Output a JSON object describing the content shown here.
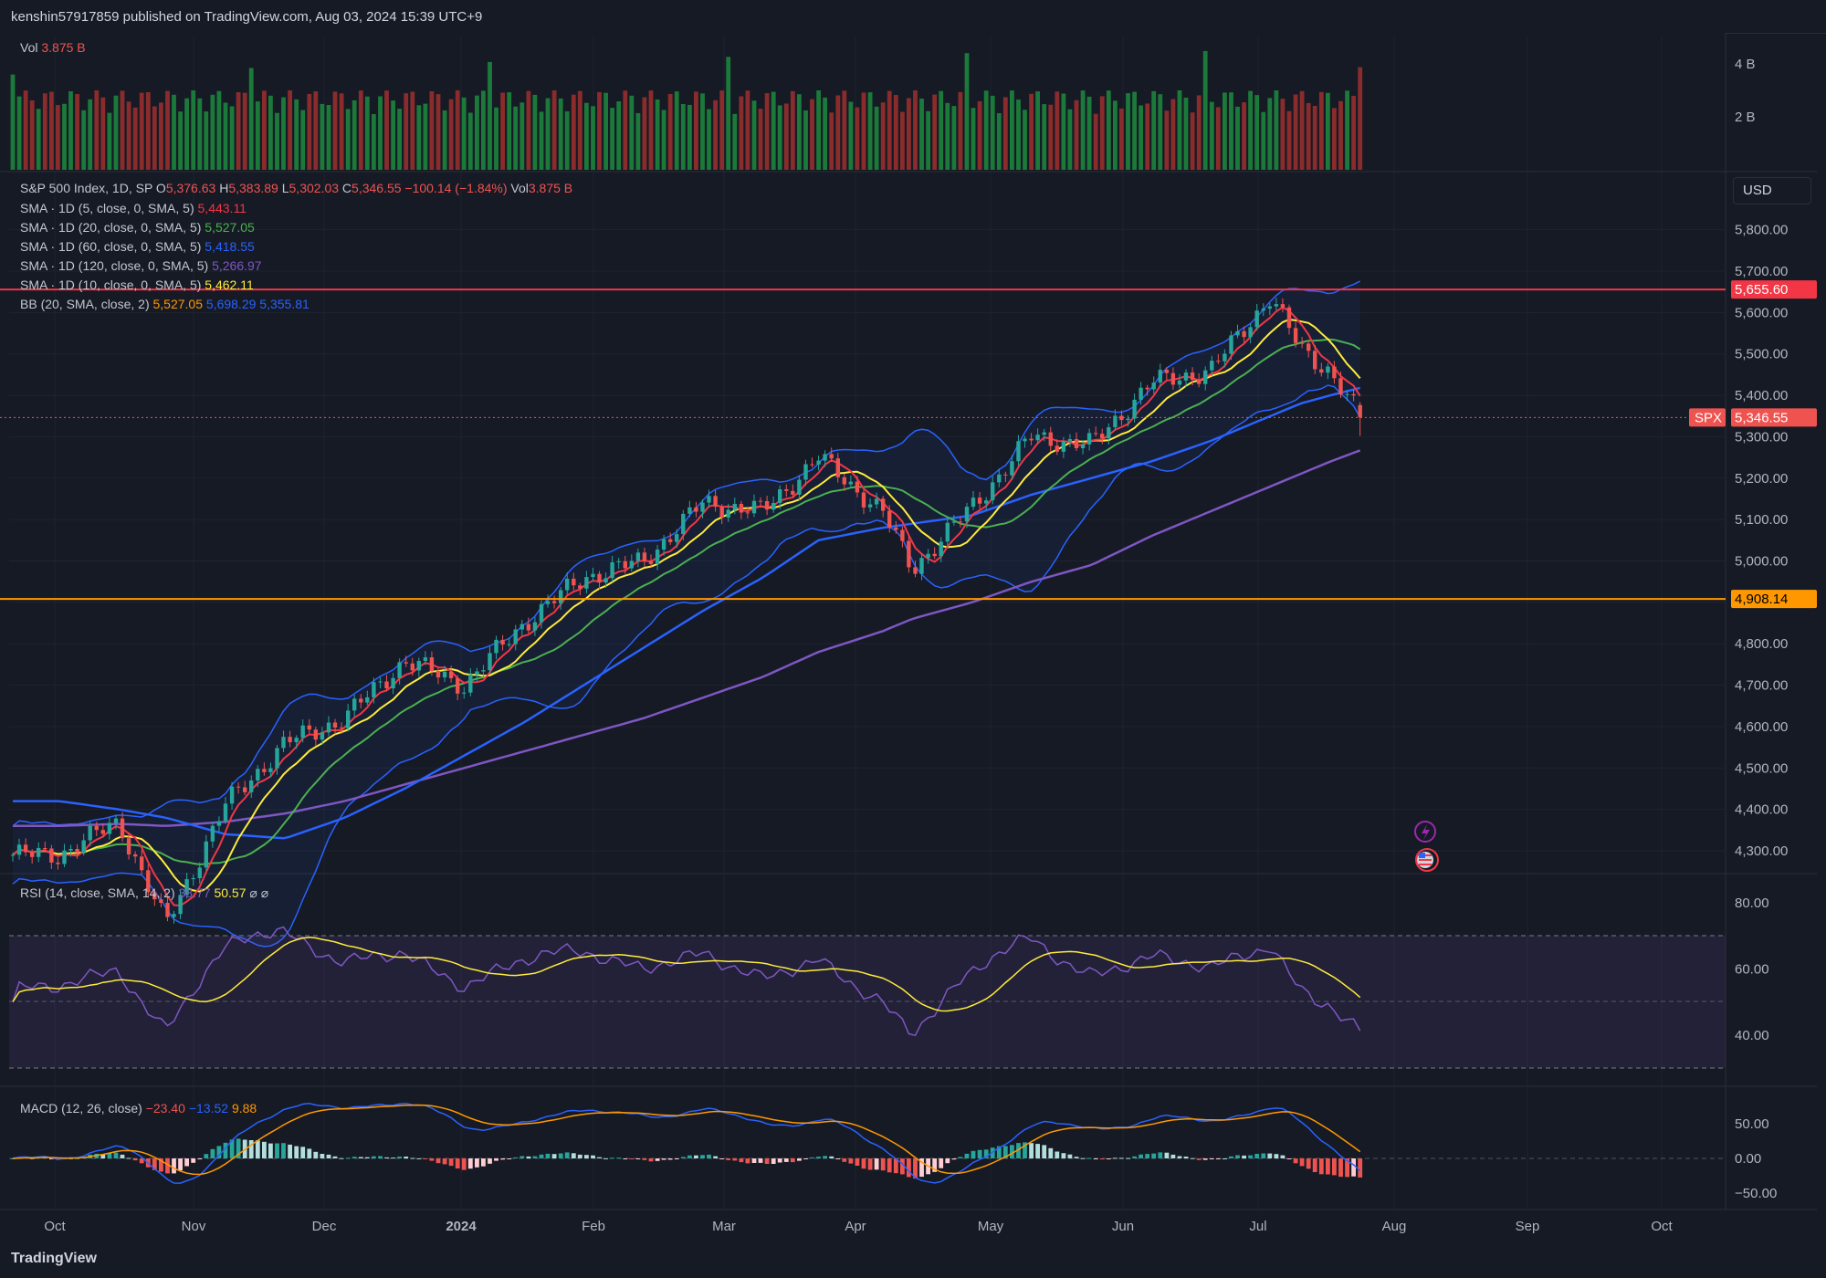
{
  "header": {
    "published": "kenshin57917859 published on TradingView.com, Aug 03, 2024 15:39 UTC+9"
  },
  "footer": {
    "brand": "TradingView"
  },
  "currency": "USD",
  "colors": {
    "bg": "#161a25",
    "up": "#26a69a",
    "down": "#ef5350",
    "sma5": "#f23645",
    "sma10": "#ffeb3b",
    "sma20": "#4caf50",
    "sma60": "#2962ff",
    "sma120": "#7e57c2",
    "bb": "#2962ff",
    "resistance": "#f23645",
    "support": "#ff9800"
  },
  "volume": {
    "label": "Vol",
    "value": "3.875 B",
    "ticks": [
      "4 B",
      "2 B"
    ]
  },
  "legend": {
    "symbol": "S&P 500 Index, 1D, SP",
    "ohlc": {
      "o_label": "O",
      "o": "5,376.63",
      "h_label": "H",
      "h": "5,383.89",
      "l_label": "L",
      "l": "5,302.03",
      "c_label": "C",
      "c": "5,346.55",
      "chg": "−100.14 (−1.84%)",
      "vol_label": "Vol",
      "vol": "3.875 B"
    },
    "sma": [
      {
        "name": "SMA · 1D (5, close, 0, SMA, 5)",
        "value": "5,443.11"
      },
      {
        "name": "SMA · 1D (20, close, 0, SMA, 5)",
        "value": "5,527.05"
      },
      {
        "name": "SMA · 1D (60, close, 0, SMA, 5)",
        "value": "5,418.55"
      },
      {
        "name": "SMA · 1D (120, close, 0, SMA, 5)",
        "value": "5,266.97"
      },
      {
        "name": "SMA · 1D (10, close, 0, SMA, 5)",
        "value": "5,462.11"
      }
    ],
    "bb": {
      "name": "BB (20, SMA, close, 2)",
      "basis": "5,527.05",
      "upper": "5,698.29",
      "lower": "5,355.81"
    }
  },
  "price_axis": [
    "5,800.00",
    "5,700.00",
    "5,600.00",
    "5,500.00",
    "5,400.00",
    "5,300.00",
    "5,200.00",
    "5,100.00",
    "5,000.00",
    "4,800.00",
    "4,700.00",
    "4,600.00",
    "4,500.00",
    "4,400.00",
    "4,300.00"
  ],
  "tags": {
    "resistance": "5,655.60",
    "support": "4,908.14",
    "symbol": "SPX",
    "last": "5,346.55"
  },
  "rsi": {
    "name": "RSI (14, close, SMA, 14, 2)",
    "value": "38.77",
    "sma": "50.57",
    "extra1": "⌀",
    "extra2": "⌀",
    "ticks": [
      "80.00",
      "60.00",
      "40.00"
    ]
  },
  "macd": {
    "name": "MACD (12, 26, close)",
    "hist": "−23.40",
    "macd": "−13.52",
    "signal": "9.88",
    "ticks": [
      "50.00",
      "0.00",
      "−50.00"
    ]
  },
  "time_axis": [
    "Oct",
    "Nov",
    "Dec",
    "2024",
    "Feb",
    "Mar",
    "Apr",
    "May",
    "Jun",
    "Jul",
    "Aug",
    "Sep",
    "Oct"
  ],
  "chart_data": {
    "type": "line",
    "title": "S&P 500 Index, 1D, SP",
    "x": [
      "2023-10-02",
      "2023-10-16",
      "2023-10-27",
      "2023-11-10",
      "2023-11-24",
      "2023-12-08",
      "2023-12-22",
      "2024-01-05",
      "2024-01-19",
      "2024-02-02",
      "2024-02-16",
      "2024-03-01",
      "2024-03-15",
      "2024-03-28",
      "2024-04-12",
      "2024-04-19",
      "2024-05-03",
      "2024-05-17",
      "2024-05-31",
      "2024-06-14",
      "2024-06-28",
      "2024-07-12",
      "2024-07-19",
      "2024-07-26",
      "2024-08-02"
    ],
    "series": [
      {
        "name": "S&P 500 Index",
        "values": [
          4290,
          4370,
          4120,
          4410,
          4560,
          4620,
          4760,
          4700,
          4850,
          4960,
          5000,
          5140,
          5120,
          5250,
          5120,
          4980,
          5130,
          5300,
          5280,
          5430,
          5460,
          5640,
          5510,
          5460,
          5346
        ]
      },
      {
        "name": "SMA (60)",
        "values": [
          4420,
          4400,
          4380,
          4340,
          4330,
          4380,
          4450,
          4530,
          4610,
          4700,
          4790,
          4880,
          4960,
          5050,
          5080,
          5090,
          5110,
          5160,
          5200,
          5240,
          5290,
          5350,
          5380,
          5400,
          5418
        ]
      },
      {
        "name": "SMA (120)",
        "values": [
          4360,
          4365,
          4360,
          4370,
          4390,
          4420,
          4460,
          4500,
          4540,
          4580,
          4620,
          4670,
          4720,
          4780,
          4830,
          4860,
          4900,
          4950,
          4990,
          5060,
          5120,
          5180,
          5210,
          5240,
          5267
        ]
      }
    ],
    "horizontal_lines": [
      5655.6,
      4908.14
    ],
    "ylim": [
      4250,
      5850
    ],
    "last": {
      "open": 5376.63,
      "high": 5383.89,
      "low": 5302.03,
      "close": 5346.55
    }
  }
}
